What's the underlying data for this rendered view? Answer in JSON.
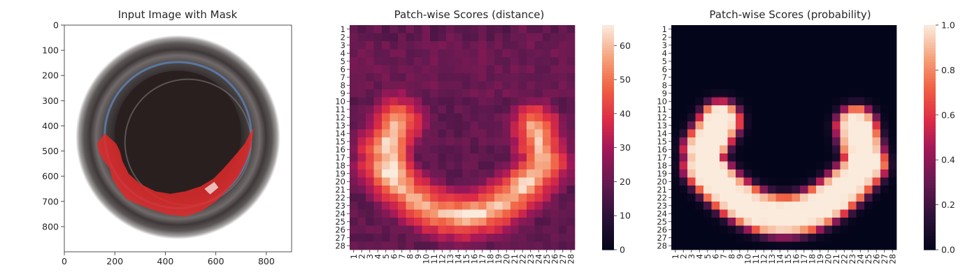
{
  "chart_data": [
    {
      "type": "image",
      "title": "Input Image with Mask",
      "xticks": [
        0,
        200,
        400,
        600,
        800
      ],
      "yticks": [
        0,
        100,
        200,
        300,
        400,
        500,
        600,
        700,
        800
      ],
      "xlim": [
        0,
        900
      ],
      "ylim": [
        900,
        0
      ],
      "colors": {
        "mask": "#e02a2a",
        "background": "#ffffff",
        "ring": "#3a3434",
        "center": "#2a1f1f",
        "rim": "#5a7fb0"
      }
    },
    {
      "type": "heatmap",
      "title": "Patch-wise Scores (distance)",
      "rows": 28,
      "cols": 28,
      "tick_labels": [
        "1",
        "2",
        "3",
        "4",
        "5",
        "6",
        "7",
        "8",
        "9",
        "10",
        "11",
        "12",
        "13",
        "14",
        "15",
        "16",
        "17",
        "18",
        "19",
        "20",
        "21",
        "22",
        "23",
        "24",
        "25",
        "26",
        "27",
        "28"
      ],
      "colorbar": {
        "min": 0,
        "max": 66,
        "ticks": [
          0,
          10,
          20,
          30,
          40,
          50,
          60
        ]
      },
      "value_range": [
        0,
        66
      ],
      "pattern": "U-shaped band of high distance through rows 12-26, peaks near (row 17, col 6) ≈ 65 and (row 24, col 15) ≈ 58; background ≈ 15-22"
    },
    {
      "type": "heatmap",
      "title": "Patch-wise Scores (probability)",
      "rows": 28,
      "cols": 28,
      "tick_labels": [
        "1",
        "2",
        "3",
        "4",
        "5",
        "6",
        "7",
        "8",
        "9",
        "10",
        "11",
        "12",
        "13",
        "14",
        "15",
        "16",
        "17",
        "18",
        "19",
        "20",
        "21",
        "22",
        "23",
        "24",
        "25",
        "26",
        "27",
        "28"
      ],
      "colorbar": {
        "min": 0.0,
        "max": 1.0,
        "ticks": [
          "0.0",
          "0.2",
          "0.4",
          "0.6",
          "0.8",
          "1.0"
        ]
      },
      "value_range": [
        0,
        1
      ],
      "pattern": "U-shaped band of probability ≈ 0.8-1.0 through rows 12-26, near 0 elsewhere"
    }
  ]
}
